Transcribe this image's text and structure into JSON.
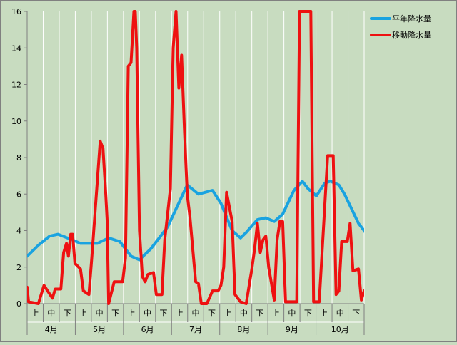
{
  "chart_data": {
    "type": "line",
    "ylim": [
      0,
      16
    ],
    "y_ticks": [
      "0",
      "2",
      "4",
      "6",
      "8",
      "10",
      "12",
      "14",
      "16"
    ],
    "period_labels": [
      "上",
      "中",
      "下"
    ],
    "month_labels": [
      "4月",
      "5月",
      "6月",
      "7月",
      "8月",
      "9月",
      "10月"
    ],
    "grid": "vertical-lines",
    "legend_position": "top-right",
    "series": [
      {
        "name": "平年降水量",
        "color": "#1aa3e0",
        "points": [
          [
            0,
            2.6
          ],
          [
            4,
            3.2
          ],
          [
            8,
            3.7
          ],
          [
            11,
            3.8
          ],
          [
            16,
            3.5
          ],
          [
            19,
            3.3
          ],
          [
            25,
            3.3
          ],
          [
            29,
            3.6
          ],
          [
            33,
            3.4
          ],
          [
            37,
            2.6
          ],
          [
            40,
            2.4
          ],
          [
            44,
            3.0
          ],
          [
            50,
            4.2
          ],
          [
            57,
            6.5
          ],
          [
            61,
            6.0
          ],
          [
            66,
            6.2
          ],
          [
            69,
            5.5
          ],
          [
            73,
            4.0
          ],
          [
            76,
            3.6
          ],
          [
            78,
            3.9
          ],
          [
            82,
            4.6
          ],
          [
            85,
            4.7
          ],
          [
            88,
            4.5
          ],
          [
            91,
            4.9
          ],
          [
            95,
            6.2
          ],
          [
            98,
            6.7
          ],
          [
            100,
            6.3
          ],
          [
            103,
            5.9
          ],
          [
            106,
            6.6
          ],
          [
            108,
            6.7
          ],
          [
            111,
            6.5
          ],
          [
            113,
            6.0
          ],
          [
            118,
            4.4
          ],
          [
            121,
            3.8
          ],
          [
            124,
            3.8
          ],
          [
            127,
            3.4
          ],
          [
            130,
            2.8
          ],
          [
            132,
            2.7
          ],
          [
            139,
            2.7
          ]
        ]
      },
      {
        "name": "移動降水量",
        "color": "#ee1111",
        "points": [
          [
            0,
            0.9
          ],
          [
            0.5,
            0.1
          ],
          [
            4,
            0.0
          ],
          [
            6,
            1.0
          ],
          [
            9,
            0.3
          ],
          [
            10,
            0.8
          ],
          [
            12,
            0.8
          ],
          [
            13,
            2.8
          ],
          [
            14,
            3.3
          ],
          [
            14.7,
            2.6
          ],
          [
            15.5,
            3.8
          ],
          [
            16.2,
            3.8
          ],
          [
            17,
            2.2
          ],
          [
            19,
            1.9
          ],
          [
            20,
            0.7
          ],
          [
            22,
            0.5
          ],
          [
            23,
            2.5
          ],
          [
            26,
            8.9
          ],
          [
            27,
            8.5
          ],
          [
            28,
            6.0
          ],
          [
            28.5,
            4.5
          ],
          [
            29,
            0.0
          ],
          [
            31,
            1.2
          ],
          [
            34,
            1.2
          ],
          [
            35,
            2.5
          ],
          [
            36,
            13.0
          ],
          [
            37,
            13.2
          ],
          [
            38,
            16
          ],
          [
            38.5,
            16
          ],
          [
            39,
            14
          ],
          [
            40,
            4.0
          ],
          [
            41,
            1.5
          ],
          [
            42,
            1.2
          ],
          [
            43,
            1.6
          ],
          [
            45,
            1.7
          ],
          [
            46,
            0.5
          ],
          [
            48,
            0.5
          ],
          [
            49,
            3.5
          ],
          [
            51,
            6.3
          ],
          [
            52,
            14
          ],
          [
            53,
            16
          ],
          [
            54,
            11.8
          ],
          [
            55,
            13.6
          ],
          [
            56,
            9.5
          ],
          [
            57,
            6.0
          ],
          [
            58,
            4.7
          ],
          [
            60,
            1.2
          ],
          [
            61,
            1.1
          ],
          [
            62,
            0.0
          ],
          [
            64,
            0.0
          ],
          [
            66,
            0.7
          ],
          [
            68,
            0.7
          ],
          [
            69,
            1.0
          ],
          [
            70,
            2.0
          ],
          [
            71,
            6.1
          ],
          [
            73,
            4.5
          ],
          [
            74,
            0.5
          ],
          [
            76,
            0.1
          ],
          [
            78,
            0.0
          ],
          [
            80,
            1.9
          ],
          [
            81,
            3.0
          ],
          [
            82,
            4.4
          ],
          [
            83,
            2.8
          ],
          [
            84,
            3.5
          ],
          [
            85,
            3.7
          ],
          [
            86,
            2.0
          ],
          [
            88,
            0.2
          ],
          [
            89,
            3.5
          ],
          [
            90,
            4.5
          ],
          [
            91,
            4.5
          ],
          [
            92,
            0.1
          ],
          [
            94,
            0.1
          ],
          [
            96,
            0.1
          ],
          [
            97,
            16
          ],
          [
            101,
            16
          ],
          [
            102,
            0.1
          ],
          [
            104,
            0.1
          ],
          [
            107,
            8.1
          ],
          [
            109,
            8.1
          ],
          [
            110,
            0.5
          ],
          [
            111,
            0.7
          ],
          [
            112,
            3.4
          ],
          [
            114,
            3.4
          ],
          [
            115,
            4.4
          ],
          [
            116,
            1.8
          ],
          [
            118,
            1.9
          ],
          [
            119,
            0.2
          ],
          [
            120,
            0.7
          ]
        ]
      }
    ]
  }
}
